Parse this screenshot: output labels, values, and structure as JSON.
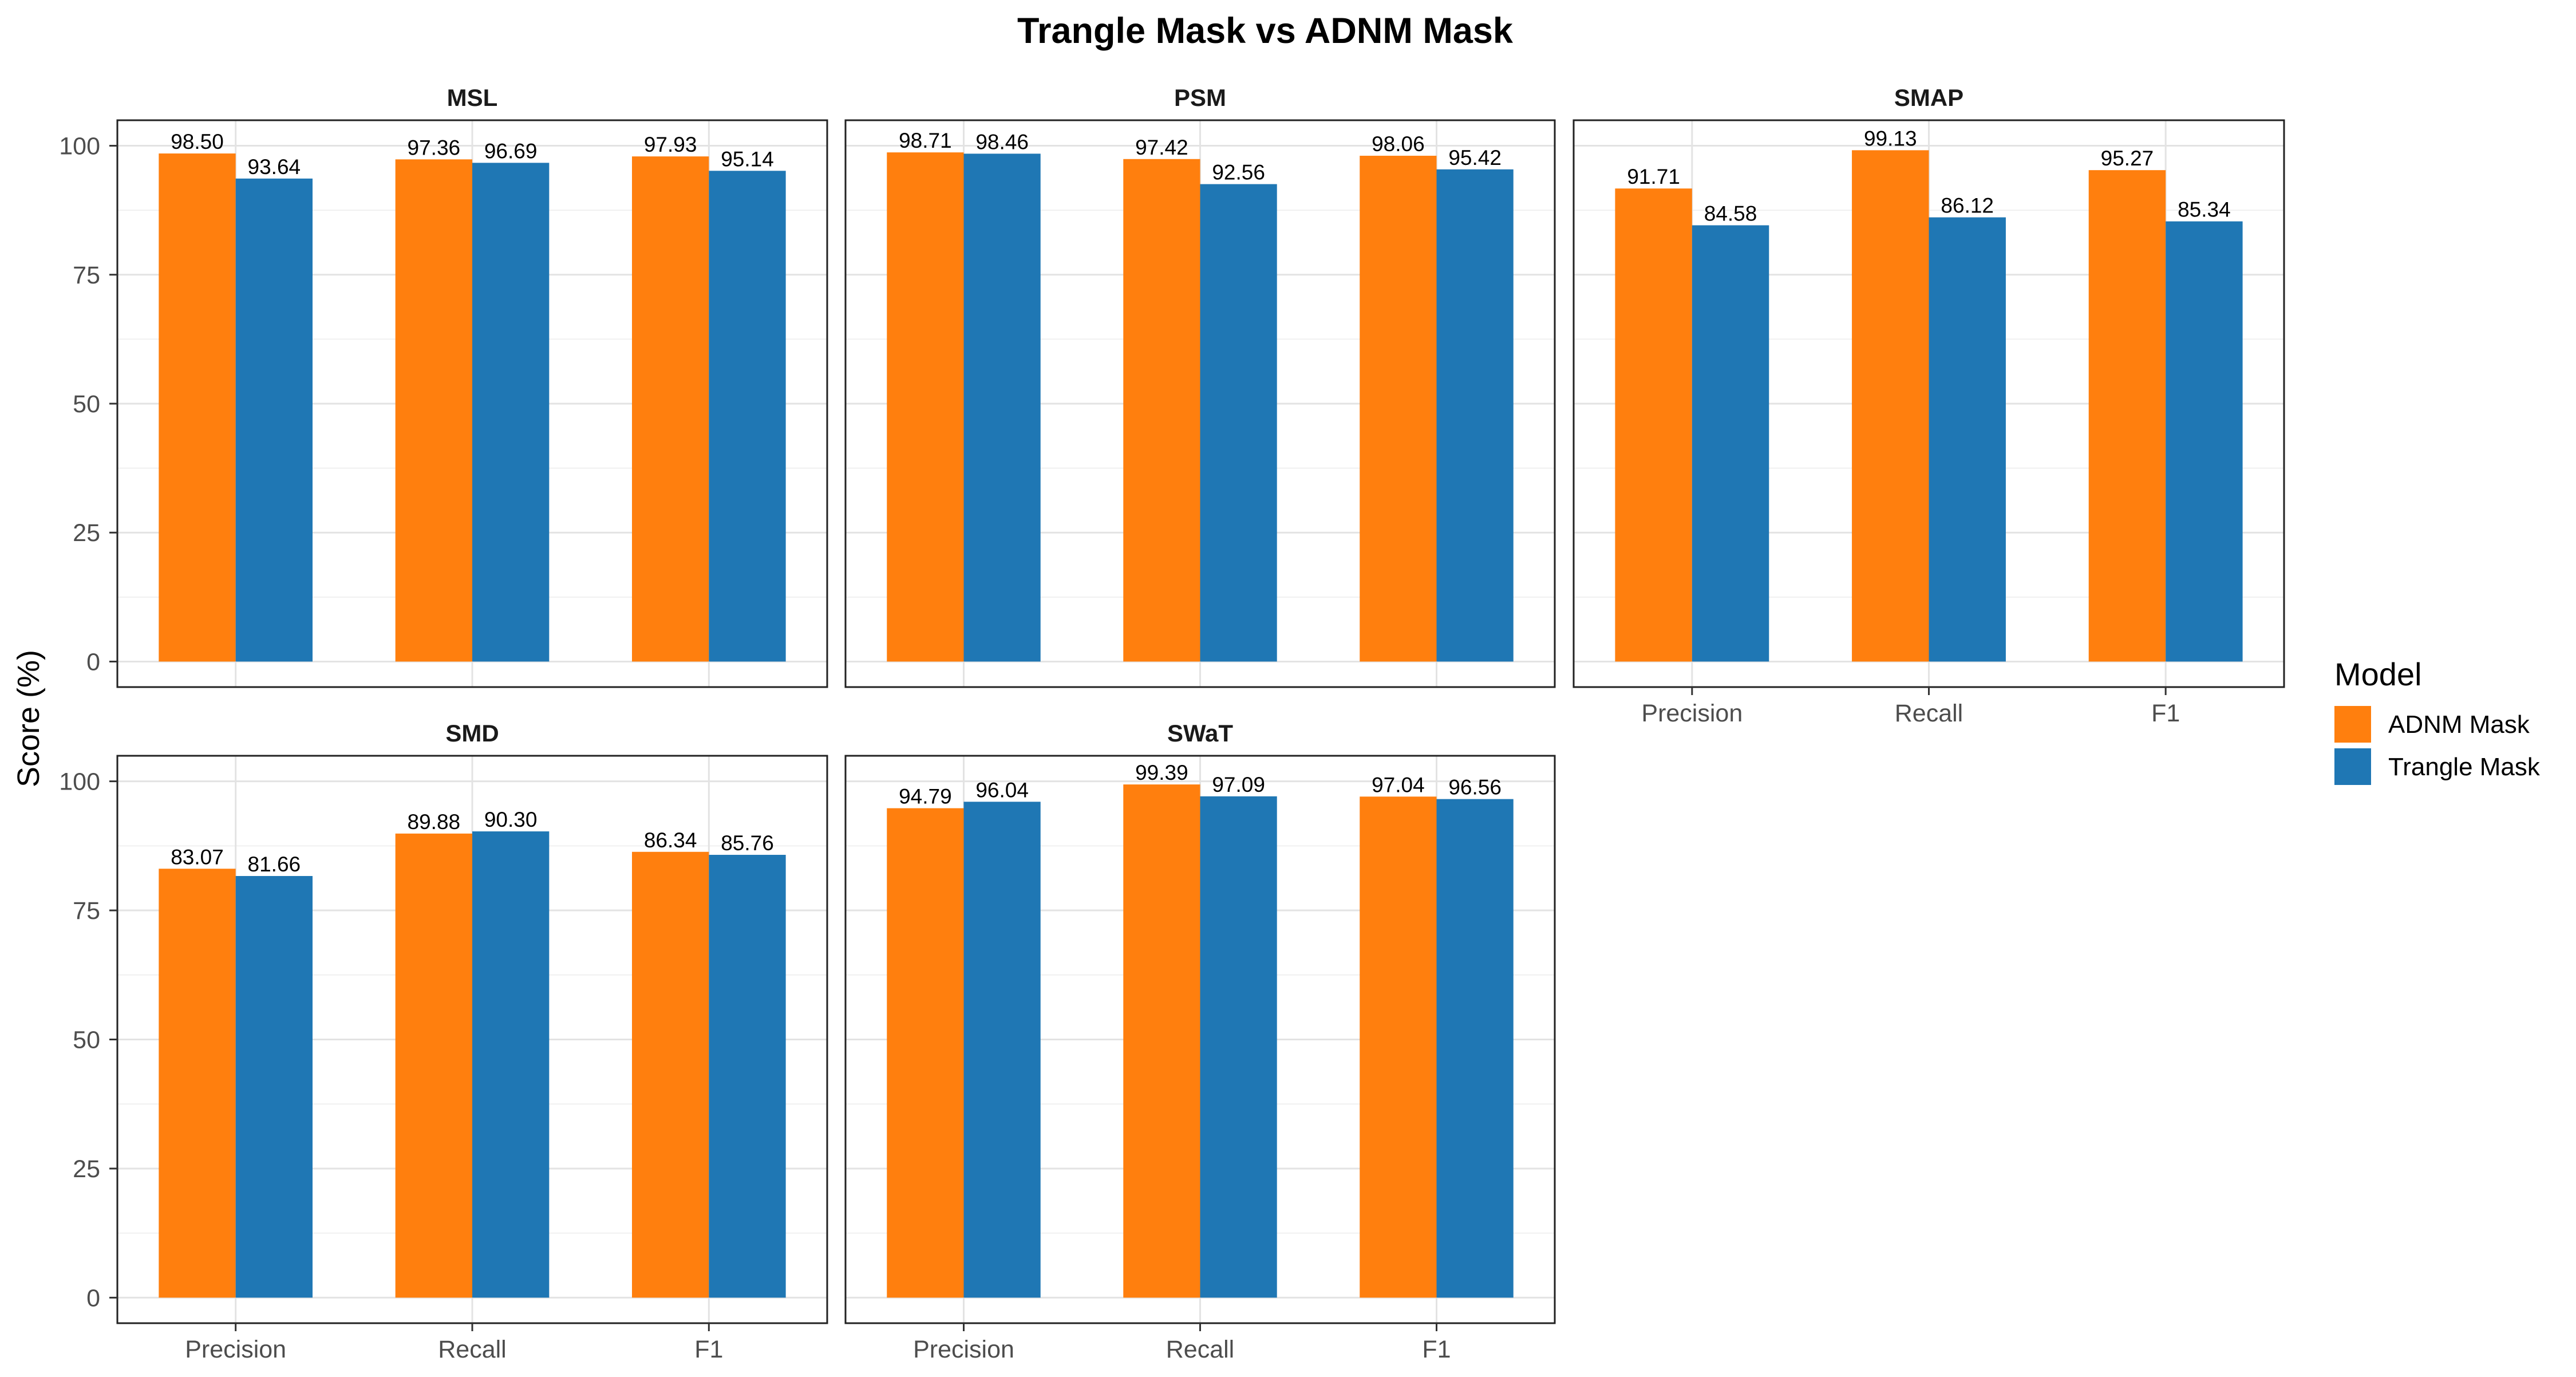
{
  "chart_data": {
    "type": "bar",
    "title": "Trangle Mask vs ADNM Mask",
    "ylabel": "Score (%)",
    "xlabel": "",
    "ylim": [
      0,
      100
    ],
    "yticks": [
      0,
      25,
      50,
      75,
      100
    ],
    "categories": [
      "Precision",
      "Recall",
      "F1"
    ],
    "grid": true,
    "legend": {
      "title": "Model",
      "placement": "right",
      "entries": [
        {
          "name": "ADNM Mask",
          "color": "#ff7f0e"
        },
        {
          "name": "Trangle Mask",
          "color": "#1f77b4"
        }
      ]
    },
    "panels": [
      {
        "name": "MSL",
        "series": [
          {
            "name": "ADNM Mask",
            "values": [
              98.5,
              97.36,
              97.93
            ],
            "labels": [
              "98.50",
              "97.36",
              "97.93"
            ]
          },
          {
            "name": "Trangle Mask",
            "values": [
              93.64,
              96.69,
              95.14
            ],
            "labels": [
              "93.64",
              "96.69",
              "95.14"
            ]
          }
        ]
      },
      {
        "name": "PSM",
        "series": [
          {
            "name": "ADNM Mask",
            "values": [
              98.71,
              97.42,
              98.06
            ],
            "labels": [
              "98.71",
              "97.42",
              "98.06"
            ]
          },
          {
            "name": "Trangle Mask",
            "values": [
              98.46,
              92.56,
              95.42
            ],
            "labels": [
              "98.46",
              "92.56",
              "95.42"
            ]
          }
        ]
      },
      {
        "name": "SMAP",
        "series": [
          {
            "name": "ADNM Mask",
            "values": [
              91.71,
              99.13,
              95.27
            ],
            "labels": [
              "91.71",
              "99.13",
              "95.27"
            ]
          },
          {
            "name": "Trangle Mask",
            "values": [
              84.58,
              86.12,
              85.34
            ],
            "labels": [
              "84.58",
              "86.12",
              "85.34"
            ]
          }
        ]
      },
      {
        "name": "SMD",
        "series": [
          {
            "name": "ADNM Mask",
            "values": [
              83.07,
              89.88,
              86.34
            ],
            "labels": [
              "83.07",
              "89.88",
              "86.34"
            ]
          },
          {
            "name": "Trangle Mask",
            "values": [
              81.66,
              90.3,
              85.76
            ],
            "labels": [
              "81.66",
              "90.30",
              "85.76"
            ]
          }
        ]
      },
      {
        "name": "SWaT",
        "series": [
          {
            "name": "ADNM Mask",
            "values": [
              94.79,
              99.39,
              97.04
            ],
            "labels": [
              "94.79",
              "99.39",
              "97.04"
            ]
          },
          {
            "name": "Trangle Mask",
            "values": [
              96.04,
              97.09,
              96.56
            ],
            "labels": [
              "96.04",
              "97.09",
              "96.56"
            ]
          }
        ]
      }
    ]
  }
}
